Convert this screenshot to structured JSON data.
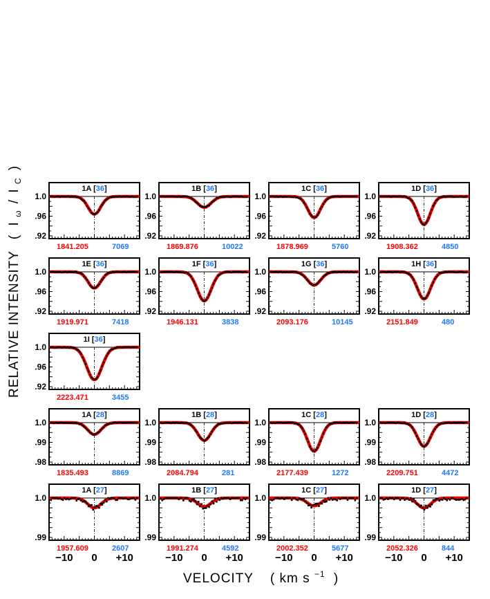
{
  "axis_labels": {
    "y_main": "RELATIVE INTENSITY",
    "y_paren_open": "(",
    "y_I": "I",
    "y_sub_omega": "ω",
    "y_slash": "/",
    "y_I2": "I",
    "y_sub_c": "C",
    "y_paren_close": ")",
    "x_main": "VELOCITY",
    "x_unit_open": "( km s",
    "x_unit_exp": "−1",
    "x_unit_close": ")"
  },
  "colors": {
    "model": "#ff0000",
    "left_caption": "#ff0000",
    "right_caption": "#1e78ff",
    "count": "#1e78ff",
    "points": "#000000"
  },
  "chart_data": [
    {
      "type": "line",
      "id": "1A",
      "count": "36",
      "ylim": [
        0.92,
        1.0
      ],
      "yticks": [
        "1.0",
        ".96",
        ".92"
      ],
      "ytick_values": [
        1.0,
        0.96,
        0.92
      ],
      "depth": 0.036,
      "sigma": 2.1,
      "caption_left": "1841.205",
      "caption_right": "7069"
    },
    {
      "type": "line",
      "id": "1B",
      "count": "36",
      "ylim": [
        0.92,
        1.0
      ],
      "yticks": [
        "1.0",
        ".96",
        ".92"
      ],
      "ytick_values": [
        1.0,
        0.96,
        0.92
      ],
      "depth": 0.022,
      "sigma": 2.3,
      "caption_left": "1869.876",
      "caption_right": "10022"
    },
    {
      "type": "line",
      "id": "1C",
      "count": "36",
      "ylim": [
        0.92,
        1.0
      ],
      "yticks": [
        "1.0",
        ".96",
        ".92"
      ],
      "ytick_values": [
        1.0,
        0.96,
        0.92
      ],
      "depth": 0.043,
      "sigma": 2.1,
      "caption_left": "1878.969",
      "caption_right": "5760"
    },
    {
      "type": "line",
      "id": "1D",
      "count": "36",
      "ylim": [
        0.92,
        1.0
      ],
      "yticks": [
        "1.0",
        ".96",
        ".92"
      ],
      "ytick_values": [
        1.0,
        0.96,
        0.92
      ],
      "depth": 0.057,
      "sigma": 2.1,
      "caption_left": "1908.362",
      "caption_right": "4850"
    },
    {
      "type": "line",
      "id": "1E",
      "count": "36",
      "ylim": [
        0.92,
        1.0
      ],
      "yticks": [
        "1.0",
        ".96",
        ".92"
      ],
      "ytick_values": [
        1.0,
        0.96,
        0.92
      ],
      "depth": 0.033,
      "sigma": 2.1,
      "caption_left": "1919.971",
      "caption_right": "7418"
    },
    {
      "type": "line",
      "id": "1F",
      "count": "36",
      "ylim": [
        0.92,
        1.0
      ],
      "yticks": [
        "1.0",
        ".96",
        ".92"
      ],
      "ytick_values": [
        1.0,
        0.96,
        0.92
      ],
      "depth": 0.059,
      "sigma": 2.3,
      "caption_left": "1946.131",
      "caption_right": "3838"
    },
    {
      "type": "line",
      "id": "1G",
      "count": "36",
      "ylim": [
        0.92,
        1.0
      ],
      "yticks": [
        "1.0",
        ".96",
        ".92"
      ],
      "ytick_values": [
        1.0,
        0.96,
        0.92
      ],
      "depth": 0.027,
      "sigma": 2.2,
      "caption_left": "2093.176",
      "caption_right": "10145"
    },
    {
      "type": "line",
      "id": "1H",
      "count": "36",
      "ylim": [
        0.92,
        1.0
      ],
      "yticks": [
        "1.0",
        ".96",
        ".92"
      ],
      "ytick_values": [
        1.0,
        0.96,
        0.92
      ],
      "depth": 0.055,
      "sigma": 2.2,
      "caption_left": "2151.849",
      "caption_right": "480"
    },
    {
      "type": "line",
      "id": "1I",
      "count": "36",
      "ylim": [
        0.92,
        1.0
      ],
      "yticks": [
        "1.0",
        ".96",
        ".92"
      ],
      "ytick_values": [
        1.0,
        0.96,
        0.92
      ],
      "depth": 0.066,
      "sigma": 2.5,
      "caption_left": "2223.471",
      "caption_right": "3455"
    },
    {
      "type": "line",
      "id": "1A",
      "count": "28",
      "ylim": [
        0.98,
        1.0
      ],
      "yticks": [
        "1.0",
        ".99",
        ".98"
      ],
      "ytick_values": [
        1.0,
        0.99,
        0.98
      ],
      "depth": 0.006,
      "sigma": 2.2,
      "caption_left": "1835.493",
      "caption_right": "8869"
    },
    {
      "type": "line",
      "id": "1B",
      "count": "28",
      "ylim": [
        0.98,
        1.0
      ],
      "yticks": [
        "1.0",
        ".99",
        ".98"
      ],
      "ytick_values": [
        1.0,
        0.99,
        0.98
      ],
      "depth": 0.009,
      "sigma": 2.2,
      "caption_left": "2084.794",
      "caption_right": "281"
    },
    {
      "type": "line",
      "id": "1C",
      "count": "28",
      "ylim": [
        0.98,
        1.0
      ],
      "yticks": [
        "1.0",
        ".99",
        ".98"
      ],
      "ytick_values": [
        1.0,
        0.99,
        0.98
      ],
      "depth": 0.0145,
      "sigma": 2.2,
      "caption_left": "2177.439",
      "caption_right": "1272"
    },
    {
      "type": "line",
      "id": "1D",
      "count": "28",
      "ylim": [
        0.98,
        1.0
      ],
      "yticks": [
        "1.0",
        ".99",
        ".98"
      ],
      "ytick_values": [
        1.0,
        0.99,
        0.98
      ],
      "depth": 0.012,
      "sigma": 2.2,
      "caption_left": "2209.751",
      "caption_right": "4472"
    },
    {
      "type": "line",
      "id": "1A",
      "count": "27",
      "ylim": [
        0.99,
        1.0
      ],
      "yticks": [
        "1.0",
        ".99"
      ],
      "ytick_values": [
        1.0,
        0.99
      ],
      "depth": 0.0025,
      "sigma": 2.2,
      "caption_left": "1957.609",
      "caption_right": "2607"
    },
    {
      "type": "line",
      "id": "1B",
      "count": "27",
      "ylim": [
        0.99,
        1.0
      ],
      "yticks": [
        "1.0",
        ".99"
      ],
      "ytick_values": [
        1.0,
        0.99
      ],
      "depth": 0.0022,
      "sigma": 2.2,
      "caption_left": "1991.274",
      "caption_right": "4592"
    },
    {
      "type": "line",
      "id": "1C",
      "count": "27",
      "ylim": [
        0.99,
        1.0
      ],
      "yticks": [
        "1.0",
        ".99"
      ],
      "ytick_values": [
        1.0,
        0.99
      ],
      "depth": 0.002,
      "sigma": 2.2,
      "caption_left": "2002.352",
      "caption_right": "5677"
    },
    {
      "type": "line",
      "id": "1D",
      "count": "27",
      "ylim": [
        0.99,
        1.0
      ],
      "yticks": [
        "1.0",
        ".99"
      ],
      "ytick_values": [
        1.0,
        0.99
      ],
      "depth": 0.0025,
      "sigma": 2.2,
      "caption_left": "2052.326",
      "caption_right": "844"
    }
  ],
  "x_axis": {
    "xlim": [
      -15,
      15
    ],
    "tick_values": [
      -10,
      0,
      10
    ],
    "tick_labels": [
      "−10",
      "0",
      "+10"
    ]
  }
}
